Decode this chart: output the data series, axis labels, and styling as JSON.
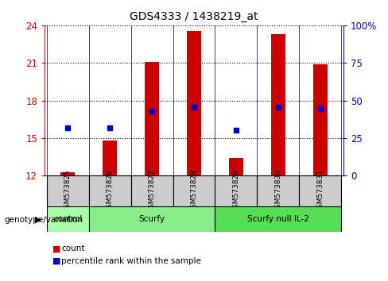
{
  "title": "GDS4333 / 1438219_at",
  "samples": [
    "GSM573825",
    "GSM573826",
    "GSM573827",
    "GSM573828",
    "GSM573829",
    "GSM573830",
    "GSM573831"
  ],
  "red_bar_tops": [
    12.3,
    14.8,
    21.05,
    23.55,
    13.4,
    23.3,
    20.9
  ],
  "blue_square_y": [
    15.8,
    15.8,
    17.15,
    17.45,
    15.6,
    17.45,
    17.35
  ],
  "bar_baseline": 12,
  "left_ylim": [
    12,
    24
  ],
  "left_yticks": [
    12,
    15,
    18,
    21,
    24
  ],
  "right_ylim": [
    0,
    100
  ],
  "right_yticks": [
    0,
    25,
    50,
    75,
    100
  ],
  "right_yticklabels": [
    "0",
    "25",
    "50",
    "75",
    "100%"
  ],
  "red_color": "#cc0000",
  "blue_color": "#0000cc",
  "bar_width": 0.35,
  "groups": [
    {
      "label": "control",
      "samples": [
        0
      ],
      "color": "#aaffaa"
    },
    {
      "label": "Scurfy",
      "samples": [
        1,
        2,
        3
      ],
      "color": "#88ee88"
    },
    {
      "label": "Scurfy null IL-2",
      "samples": [
        4,
        5,
        6
      ],
      "color": "#55dd55"
    }
  ],
  "group_label_prefix": "genotype/variation",
  "legend_count_label": "count",
  "legend_pct_label": "percentile rank within the sample",
  "left_tick_color": "#cc0000",
  "right_tick_color": "#0000cc",
  "bg_color": "#ffffff",
  "sample_bg_color": "#cccccc",
  "plot_bg_color": "#ffffff"
}
